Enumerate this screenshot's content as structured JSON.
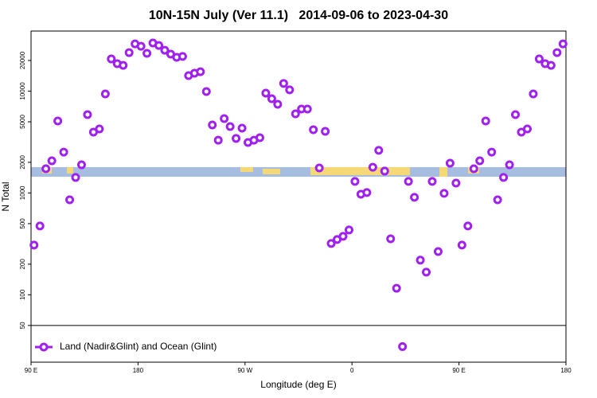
{
  "chart_data": {
    "type": "scatter",
    "log_y": true,
    "title": "10N-15N July (Ver 11.1)   2014-09-06 to 2023-04-30",
    "xlabel": "Longitude (deg E)",
    "ylabel": "N Total",
    "xlim": [
      90,
      540
    ],
    "ylim": [
      21.8,
      38900
    ],
    "xticks": [
      {
        "value": 90,
        "label": "90 E"
      },
      180,
      {
        "value": 270,
        "label": "90 W"
      },
      {
        "value": 360,
        "label": "0"
      },
      {
        "value": 450,
        "label": "90 E"
      },
      {
        "value": 540,
        "label": "180"
      }
    ],
    "yticks": [
      50,
      100,
      200,
      500,
      1000,
      2000,
      5000,
      10000,
      20000
    ],
    "series": [
      {
        "name": "Land (Nadir&Glint) and Ocean (Glint)",
        "color": "#a020f0",
        "x": [
          92.5,
          97.5,
          102.5,
          107.5,
          112.5,
          117.5,
          122.5,
          127.5,
          132.5,
          137.5,
          142.5,
          147.5,
          152.5,
          157.5,
          162.5,
          167.5,
          172.5,
          177.5,
          182.5,
          187.5,
          192.5,
          197.5,
          202.5,
          207.5,
          212.5,
          217.5,
          222.5,
          227.5,
          232.5,
          237.5,
          242.5,
          247.5,
          252.5,
          257.5,
          262.5,
          267.5,
          272.5,
          277.5,
          282.5,
          287.5,
          292.5,
          297.5,
          302.5,
          307.5,
          312.5,
          317.5,
          322.5,
          327.5,
          332.5,
          337.5,
          342.5,
          347.5,
          352.5,
          357.5,
          362.5,
          367.5,
          372.5,
          377.5,
          382.5,
          387.5,
          392.5,
          397.5,
          402.5,
          407.5,
          412.5,
          417.5,
          422.5,
          427.5,
          432.5,
          437.5,
          442.5,
          447.5,
          452.5,
          457.5,
          462.5,
          467.5,
          472.5,
          477.5,
          482.5,
          487.5,
          492.5,
          497.5,
          502.5,
          507.5,
          512.5,
          517.5,
          522.5,
          527.5,
          532.5,
          537.5
        ],
        "values": [
          308,
          474,
          1730,
          2070,
          5090,
          2520,
          857,
          1420,
          1890,
          5880,
          3960,
          4250,
          9380,
          20700,
          18600,
          17900,
          23900,
          29100,
          27600,
          23500,
          29700,
          28100,
          25200,
          23100,
          21500,
          21900,
          14200,
          15000,
          15500,
          9910,
          4650,
          3300,
          5370,
          4490,
          3430,
          4330,
          3130,
          3300,
          3490,
          9550,
          8430,
          7430,
          11900,
          10300,
          5980,
          6670,
          6670,
          4180,
          1760,
          4030,
          319,
          349,
          375,
          433,
          1300,
          973,
          1010,
          1790,
          2620,
          1640,
          355,
          116,
          31,
          1300,
          906,
          219,
          167,
          1300,
          266,
          991,
          1960,
          1250,
          308,
          474,
          1730,
          2070,
          5090,
          2520,
          857,
          1420,
          1890,
          5880,
          3960,
          4250,
          9380,
          20700,
          18600,
          17900,
          23900,
          29100
        ]
      }
    ]
  }
}
